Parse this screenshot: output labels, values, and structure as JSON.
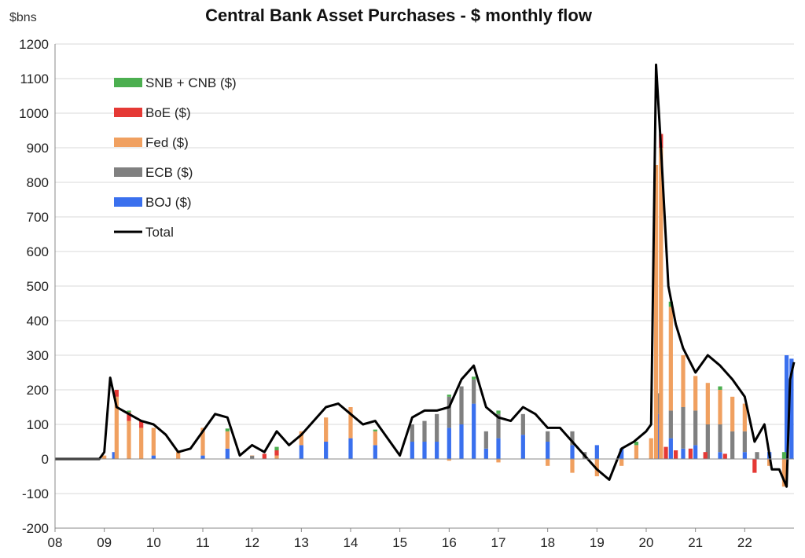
{
  "chart_data": {
    "type": "bar",
    "stacked": true,
    "title": "Central Bank Asset Purchases - $ monthly flow",
    "unit_label": "$bns",
    "ylim": [
      -200,
      1200
    ],
    "y_ticks": [
      -200,
      -100,
      0,
      100,
      200,
      300,
      400,
      500,
      600,
      700,
      800,
      900,
      1000,
      1100,
      1200
    ],
    "x_range": [
      2008,
      2023
    ],
    "x_ticks": [
      "08",
      "09",
      "10",
      "11",
      "12",
      "13",
      "14",
      "15",
      "16",
      "17",
      "18",
      "19",
      "20",
      "21",
      "22"
    ],
    "grid": true,
    "legend_position": "top-left",
    "series": [
      {
        "name": "SNB + CNB ($)",
        "color": "#4caf50",
        "type": "bar",
        "x": [
          2009.5,
          2011.5,
          2012.5,
          2014.5,
          2016.0,
          2016.5,
          2017.0,
          2019.8,
          2020.5,
          2021.5,
          2022.8
        ],
        "values": [
          5,
          8,
          10,
          5,
          6,
          8,
          10,
          10,
          15,
          10,
          20
        ]
      },
      {
        "name": "BoE ($)",
        "color": "#e53935",
        "type": "bar",
        "x": [
          2009.25,
          2009.5,
          2009.75,
          2012.25,
          2012.5,
          2020.3,
          2020.4,
          2020.6,
          2020.9,
          2021.2,
          2021.6,
          2022.2
        ],
        "values": [
          20,
          25,
          20,
          15,
          15,
          40,
          35,
          25,
          30,
          20,
          15,
          -40
        ]
      },
      {
        "name": "Fed ($)",
        "color": "#f0a060",
        "type": "bar",
        "x": [
          2009.0,
          2009.25,
          2009.5,
          2009.75,
          2010.0,
          2010.5,
          2011.0,
          2011.5,
          2012.0,
          2012.5,
          2013.0,
          2013.5,
          2014.0,
          2014.5,
          2015.0,
          2016.0,
          2017.0,
          2018.0,
          2018.5,
          2019.0,
          2019.5,
          2019.8,
          2020.1,
          2020.2,
          2020.3,
          2020.5,
          2020.75,
          2021.0,
          2021.25,
          2021.5,
          2021.75,
          2022.0,
          2022.5,
          2022.8
        ],
        "values": [
          10,
          180,
          110,
          90,
          80,
          20,
          80,
          50,
          0,
          10,
          40,
          70,
          90,
          40,
          0,
          -5,
          -10,
          -20,
          -40,
          -50,
          -20,
          40,
          60,
          850,
          900,
          300,
          150,
          100,
          120,
          100,
          100,
          80,
          -20,
          -80
        ]
      },
      {
        "name": "ECB ($)",
        "color": "#808080",
        "type": "bar",
        "x": [
          2012.0,
          2015.25,
          2015.5,
          2015.75,
          2016.0,
          2016.25,
          2016.5,
          2016.75,
          2017.0,
          2017.5,
          2018.0,
          2018.5,
          2018.75,
          2019.9,
          2020.25,
          2020.5,
          2020.75,
          2021.0,
          2021.25,
          2021.5,
          2021.75,
          2022.0,
          2022.25
        ],
        "values": [
          10,
          50,
          60,
          80,
          90,
          110,
          70,
          50,
          70,
          60,
          30,
          40,
          20,
          0,
          60,
          80,
          120,
          100,
          100,
          80,
          80,
          60,
          20
        ]
      },
      {
        "name": "BOJ ($)",
        "color": "#3a70ee",
        "type": "bar",
        "x": [
          2009.2,
          2010.0,
          2011.0,
          2011.5,
          2013.0,
          2013.5,
          2014.0,
          2014.5,
          2015.25,
          2015.5,
          2015.75,
          2016.0,
          2016.25,
          2016.5,
          2016.75,
          2017.0,
          2017.5,
          2018.0,
          2018.5,
          2019.0,
          2019.5,
          2020.25,
          2020.5,
          2020.75,
          2021.0,
          2021.5,
          2022.0,
          2022.5,
          2022.85,
          2022.95
        ],
        "values": [
          20,
          10,
          10,
          30,
          40,
          50,
          60,
          40,
          50,
          50,
          50,
          90,
          100,
          160,
          30,
          60,
          70,
          50,
          40,
          40,
          30,
          130,
          60,
          30,
          40,
          20,
          20,
          20,
          300,
          290
        ]
      },
      {
        "name": "Total",
        "color": "#000000",
        "type": "line",
        "x": [
          2008.0,
          2008.9,
          2009.0,
          2009.12,
          2009.25,
          2009.5,
          2009.75,
          2010.0,
          2010.25,
          2010.5,
          2010.75,
          2011.0,
          2011.25,
          2011.5,
          2011.75,
          2012.0,
          2012.25,
          2012.5,
          2012.75,
          2013.0,
          2013.25,
          2013.5,
          2013.75,
          2014.0,
          2014.25,
          2014.5,
          2014.75,
          2015.0,
          2015.25,
          2015.5,
          2015.75,
          2016.0,
          2016.25,
          2016.5,
          2016.75,
          2017.0,
          2017.25,
          2017.5,
          2017.75,
          2018.0,
          2018.25,
          2018.5,
          2018.75,
          2019.0,
          2019.25,
          2019.5,
          2019.75,
          2020.0,
          2020.1,
          2020.2,
          2020.3,
          2020.45,
          2020.6,
          2020.75,
          2021.0,
          2021.25,
          2021.5,
          2021.75,
          2022.0,
          2022.2,
          2022.4,
          2022.55,
          2022.7,
          2022.85,
          2022.92,
          2023.0
        ],
        "values": [
          0,
          0,
          20,
          235,
          150,
          130,
          110,
          100,
          70,
          20,
          30,
          80,
          130,
          120,
          10,
          40,
          20,
          80,
          40,
          70,
          110,
          150,
          160,
          130,
          100,
          110,
          60,
          10,
          120,
          140,
          140,
          150,
          230,
          270,
          150,
          120,
          110,
          150,
          130,
          90,
          90,
          50,
          10,
          -30,
          -60,
          30,
          50,
          80,
          100,
          1140,
          900,
          500,
          390,
          320,
          250,
          300,
          270,
          230,
          180,
          50,
          100,
          -30,
          -30,
          -80,
          230,
          280
        ]
      }
    ]
  }
}
